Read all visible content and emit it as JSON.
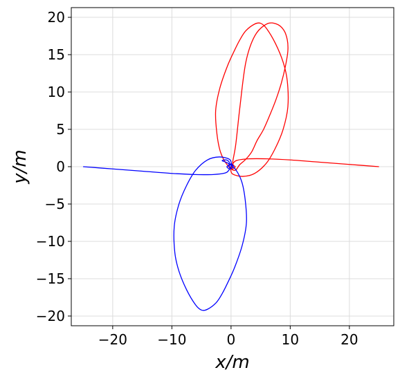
{
  "chart_data": {
    "type": "line",
    "title": "",
    "xlabel": "x/m",
    "ylabel": "y/m",
    "xlim": [
      -27,
      27.5
    ],
    "ylim": [
      -21.3,
      21.3
    ],
    "xticks": [
      -20,
      -10,
      0,
      10,
      20
    ],
    "yticks": [
      -20,
      -15,
      -10,
      -5,
      0,
      5,
      10,
      15,
      20
    ],
    "xtick_labels": [
      "−20",
      "−10",
      "0",
      "10",
      "20"
    ],
    "ytick_labels": [
      "−20",
      "−15",
      "−10",
      "−5",
      "0",
      "5",
      "10",
      "15",
      "20"
    ],
    "grid": true,
    "series": [
      {
        "color": "#ff0000",
        "x": [
          25,
          20,
          15,
          10,
          6,
          3,
          1,
          0.4,
          0.1,
          -0.05,
          0.3,
          2,
          4,
          6,
          7.5,
          8.8,
          9.6,
          9.5,
          8.8,
          7.5,
          6,
          5,
          4,
          2.5,
          1.5,
          0.6,
          -0.6,
          -1.9,
          -2.6,
          -2.4,
          -1.8,
          -0.7,
          0.6,
          1.5,
          2.5,
          3.5,
          4.4,
          5.5,
          6.6,
          7.6,
          8.5,
          9.2,
          9.6,
          9.5,
          8.9,
          7.7,
          6,
          4,
          2.5,
          1.5,
          0.8,
          0.3,
          0.4,
          0.7,
          0.5,
          0.2,
          -0.3,
          -0.3,
          0,
          0.3,
          0.2,
          0
        ],
        "y": [
          0,
          0.3,
          0.6,
          0.9,
          1.05,
          1.05,
          0.85,
          0.5,
          0.1,
          -0.4,
          -1.0,
          -1.3,
          -0.9,
          0.5,
          2.5,
          5,
          8,
          11.5,
          14,
          16.5,
          18.5,
          19.2,
          19.1,
          18.2,
          17,
          15.6,
          13.5,
          10.5,
          7.5,
          4.5,
          2,
          0.3,
          -0.5,
          0.3,
          1,
          2,
          3.5,
          5,
          7,
          9,
          11.2,
          13.5,
          15.5,
          17,
          18.3,
          19.1,
          19.1,
          17.5,
          14,
          8,
          3,
          0.7,
          0.2,
          0,
          -0.2,
          -0.3,
          -0.1,
          0.2,
          0.4,
          0.1,
          -0.1,
          0
        ]
      },
      {
        "color": "#0000ff",
        "x": [
          -25,
          -20,
          -15,
          -10,
          -6,
          -3,
          -1,
          -0.4,
          -0.1,
          0.05,
          -0.3,
          -2,
          -4,
          -6,
          -7.5,
          -8.8,
          -9.6,
          -9.5,
          -8.8,
          -7.5,
          -6,
          -5,
          -4,
          -2.5,
          -1.5,
          -0.6,
          0.6,
          1.9,
          2.6,
          2.4,
          1.8,
          0.7,
          -0.6,
          -1.5,
          -0.8,
          -0.3,
          -0.4,
          -0.7,
          -0.5,
          -0.2,
          0.3,
          0.3,
          0,
          -0.3,
          -0.2,
          0
        ],
        "y": [
          0,
          -0.3,
          -0.6,
          -0.9,
          -1.05,
          -1.05,
          -0.85,
          -0.5,
          -0.1,
          0.4,
          1.0,
          1.3,
          0.9,
          -0.5,
          -2.5,
          -5,
          -8,
          -11.5,
          -14,
          -16.5,
          -18.5,
          -19.2,
          -19.1,
          -18.2,
          -17,
          -15.6,
          -13.5,
          -10.5,
          -7.5,
          -4.5,
          -2,
          -0.3,
          0.5,
          0.8,
          0.9,
          0.6,
          0.2,
          0,
          -0.2,
          -0.3,
          -0.1,
          0.2,
          0.4,
          0.1,
          -0.1,
          0
        ]
      }
    ]
  }
}
